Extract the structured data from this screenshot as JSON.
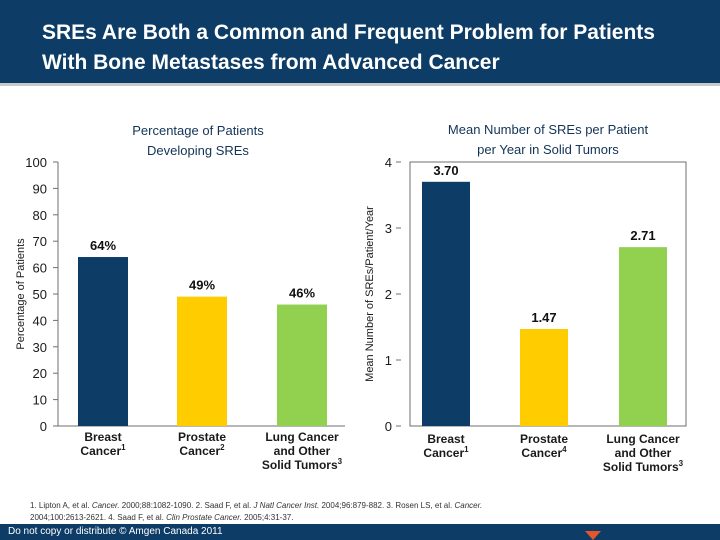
{
  "title": {
    "line1": "SREs Are Both a Common and Frequent Problem for Patients",
    "line2": "With Bone Metastases from Advanced Cancer"
  },
  "chart_data": [
    {
      "type": "bar",
      "title": [
        "Percentage of Patients",
        "Developing SREs"
      ],
      "ylabel": "Percentage of Patients",
      "xlabel": "",
      "ylim": [
        0,
        100
      ],
      "yticks": [
        0,
        10,
        20,
        30,
        40,
        50,
        60,
        70,
        80,
        90,
        100
      ],
      "categories": [
        {
          "lines": [
            "Breast",
            "Cancer"
          ],
          "ref": "1"
        },
        {
          "lines": [
            "Prostate",
            "Cancer"
          ],
          "ref": "2"
        },
        {
          "lines": [
            "Lung Cancer",
            "and Other",
            "Solid Tumors"
          ],
          "ref": "3"
        }
      ],
      "values": [
        64,
        49,
        46
      ],
      "value_labels": [
        "64%",
        "49%",
        "46%"
      ],
      "colors": [
        "#0d3c66",
        "#ffcc00",
        "#92d050"
      ]
    },
    {
      "type": "bar",
      "title": [
        "Mean Number of SREs per Patient",
        "per Year in Solid Tumors"
      ],
      "ylabel": "Mean Number of SREs/Patient/Year",
      "xlabel": "",
      "ylim": [
        0,
        4
      ],
      "yticks": [
        0,
        1,
        2,
        3,
        4
      ],
      "categories": [
        {
          "lines": [
            "Breast",
            "Cancer"
          ],
          "ref": "1"
        },
        {
          "lines": [
            "Prostate",
            "Cancer"
          ],
          "ref": "4"
        },
        {
          "lines": [
            "Lung Cancer",
            "and Other",
            "Solid Tumors"
          ],
          "ref": "3"
        }
      ],
      "values": [
        3.7,
        1.47,
        2.71
      ],
      "value_labels": [
        "3.70",
        "1.47",
        "2.71"
      ],
      "colors": [
        "#0d3c66",
        "#ffcc00",
        "#92d050"
      ]
    }
  ],
  "footnote": {
    "line1_a": "1. Lipton A, et al. ",
    "line1_b": "Cancer.",
    "line1_c": " 2000;88:1082-1090. 2. Saad F, et al. ",
    "line1_d": "J Natl Cancer Inst.",
    "line1_e": " 2004;96:879-882. 3. Rosen LS, et al. ",
    "line1_f": "Cancer.",
    "line2_a": "2004;100:2613-2621. 4. Saad F, et al. ",
    "line2_b": "Clin Prostate Cancer.",
    "line2_c": " 2005;4:31-37."
  },
  "bottom": {
    "text": "Do not copy or distribute © Amgen Canada 2011"
  }
}
